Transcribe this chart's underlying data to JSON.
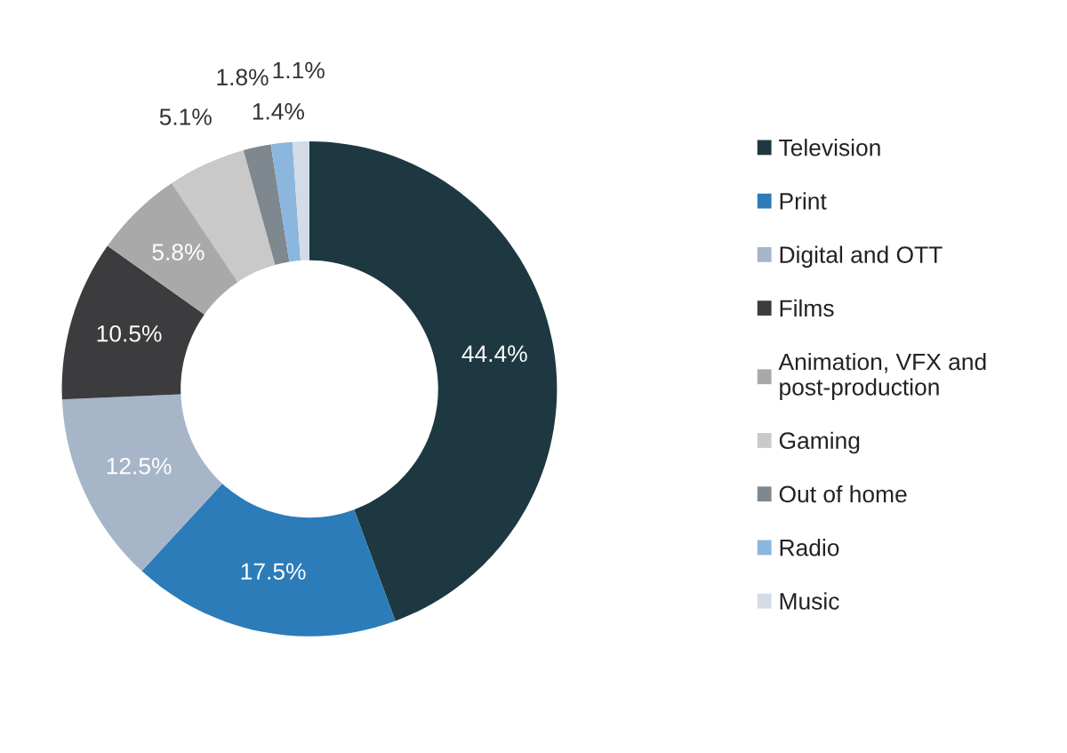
{
  "chart_data": {
    "type": "donut",
    "categories": [
      "Television",
      "Print",
      "Digital and OTT",
      "Films",
      "Animation, VFX and\npost-production",
      "Gaming",
      "Out of home",
      "Radio",
      "Music"
    ],
    "values": [
      44.4,
      17.5,
      12.5,
      10.5,
      5.8,
      5.1,
      1.8,
      1.4,
      1.1
    ],
    "value_labels": [
      "44.4%",
      "17.5%",
      "12.5%",
      "10.5%",
      "5.8%",
      "5.1%",
      "1.8%",
      "1.4%",
      "1.1%"
    ],
    "colors": [
      "#1e3842",
      "#2b7cb9",
      "#a7b5c9",
      "#3c3c3e",
      "#a9a9a9",
      "#c9c9c9",
      "#7f878f",
      "#8bb6de",
      "#d3dbe7"
    ],
    "legend": "right"
  }
}
